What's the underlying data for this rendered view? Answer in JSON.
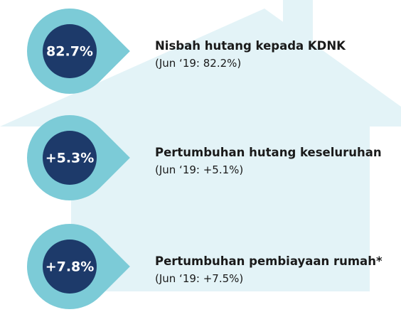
{
  "items": [
    {
      "value": "82.7%",
      "title": "Nisbah hutang kepada KDNK",
      "note": "(Jun ‘19: 82.2%)"
    },
    {
      "value": "+5.3%",
      "title": "Pertumbuhan hutang keseluruhan",
      "note": "(Jun ‘19: +5.1%)"
    },
    {
      "value": "+7.8%",
      "title": "Pertumbuhan pembiayaan rumah*",
      "note": "(Jun ‘19: +7.5%)"
    }
  ]
}
